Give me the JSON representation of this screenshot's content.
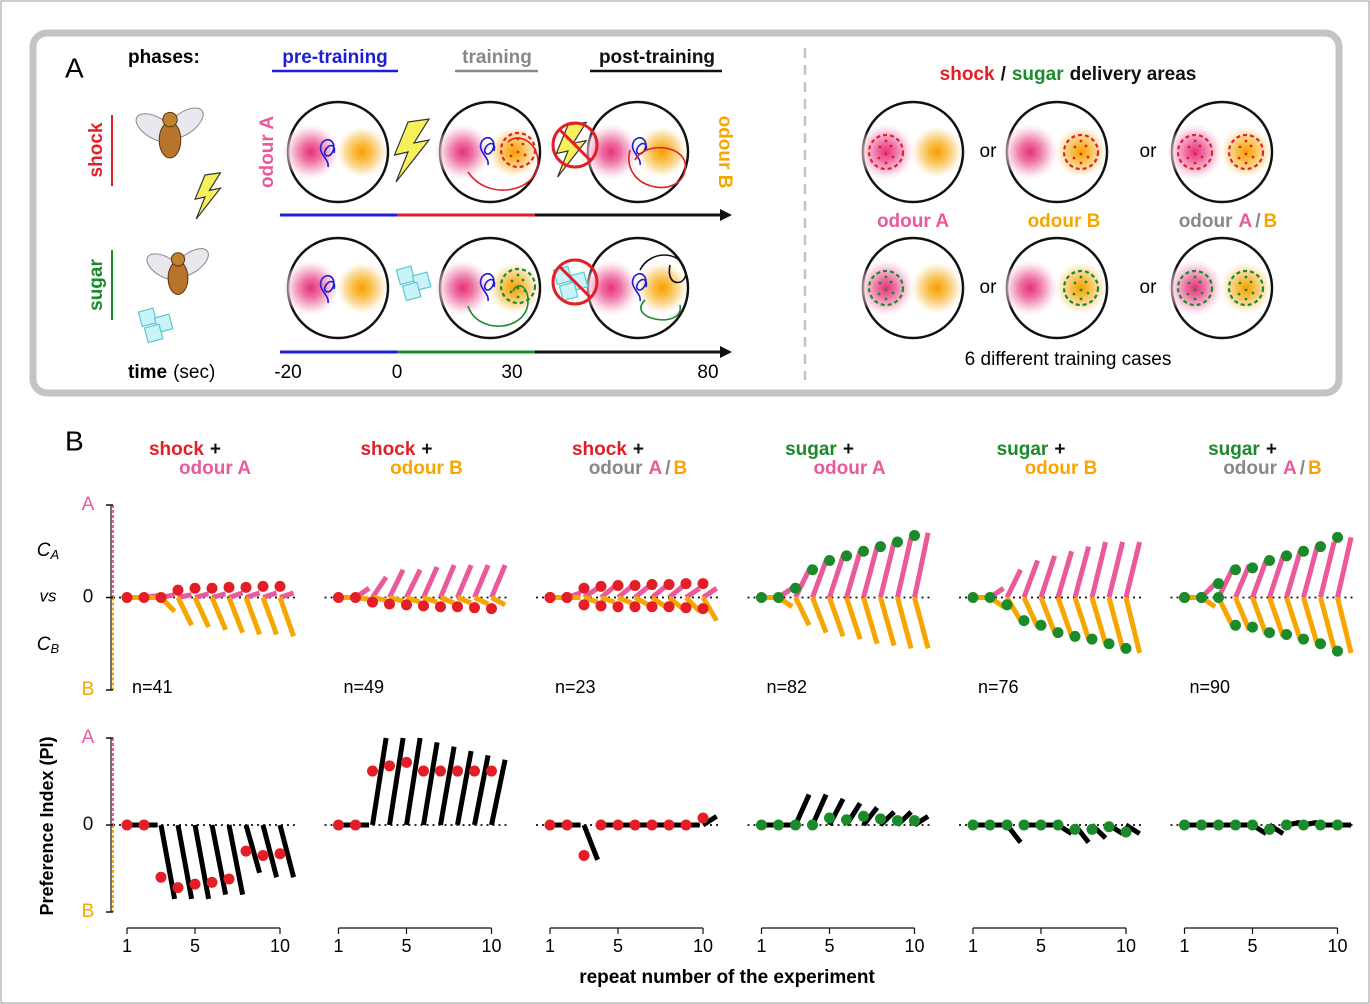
{
  "panel_a": {
    "label": "A",
    "phases_label": "phases:",
    "phases": [
      "pre-training",
      "training",
      "post-training"
    ],
    "stimuli": [
      "shock",
      "sugar"
    ],
    "odour_a": "odour A",
    "odour_b": "odour B",
    "time_label": "time",
    "time_unit": "(sec)",
    "time_ticks": [
      -20,
      0,
      30,
      80
    ],
    "delivery_title": [
      "shock",
      "/",
      "sugar",
      "delivery areas"
    ],
    "case_labels": [
      "odour A",
      "odour B"
    ],
    "case_mixed": [
      "odour",
      "A",
      "/",
      "B"
    ],
    "or": "or",
    "footer": "6 different training cases"
  },
  "panel_b": {
    "label": "B",
    "compare_label": [
      "C",
      "A",
      "vs",
      "C",
      "B"
    ],
    "pi_label": "Preference Index (PI)",
    "x_label": "repeat number of the experiment"
  },
  "chart_data": [
    {
      "type": "line",
      "title": [
        "shock",
        "+",
        "odour A"
      ],
      "title_colors": [
        "#e41e26",
        "#111",
        "#ea5a9a"
      ],
      "n": "n=41",
      "x": [
        1,
        2,
        3,
        4,
        5,
        6,
        7,
        8,
        9,
        10
      ],
      "xlim": [
        0,
        11
      ],
      "ylim": [
        -1,
        1
      ],
      "yticks": [
        {
          "value": 1,
          "label": "A"
        },
        0,
        {
          "value": -1,
          "label": "B"
        }
      ],
      "a_values": [
        0,
        0.02,
        0.03,
        0.03,
        0.04,
        0.04,
        0.05,
        0.05,
        0.05,
        0.05
      ],
      "a_color": "#ea5a9a",
      "b_values": [
        0,
        0,
        -0.15,
        -0.3,
        -0.32,
        -0.35,
        -0.38,
        -0.4,
        -0.4,
        -0.42
      ],
      "b_color": "#f7a600",
      "dots": [
        [
          0,
          0,
          0,
          0.08,
          0.1,
          0.1,
          0.11,
          0.11,
          0.12,
          0.12
        ]
      ],
      "dot_color": "#e41e26"
    },
    {
      "type": "line",
      "title": [
        "shock",
        "+",
        "odour B"
      ],
      "title_colors": [
        "#e41e26",
        "#111",
        "#f7a600"
      ],
      "n": "n=49",
      "x": [
        1,
        2,
        3,
        4,
        5,
        6,
        7,
        8,
        9,
        10
      ],
      "xlim": [
        0,
        11
      ],
      "ylim": [
        -1,
        1
      ],
      "a_values": [
        0,
        0.1,
        0.22,
        0.3,
        0.3,
        0.33,
        0.35,
        0.35,
        0.35,
        0.35
      ],
      "a_color": "#ea5a9a",
      "b_values": [
        0,
        -0.02,
        -0.03,
        -0.04,
        -0.05,
        -0.05,
        -0.06,
        -0.06,
        -0.07,
        -0.08
      ],
      "b_color": "#f7a600",
      "dots": [
        [
          0,
          0,
          -0.05,
          -0.07,
          -0.08,
          -0.09,
          -0.1,
          -0.1,
          -0.11,
          -0.12
        ]
      ],
      "dot_color": "#e41e26"
    },
    {
      "type": "line",
      "title": [
        "shock",
        "+",
        "odour",
        "A",
        "/",
        "B"
      ],
      "title_colors": [
        "#e41e26",
        "#111",
        "#888",
        "#ea5a9a",
        "#888",
        "#f7a600"
      ],
      "n": "n=23",
      "x": [
        1,
        2,
        3,
        4,
        5,
        6,
        7,
        8,
        9,
        10
      ],
      "xlim": [
        0,
        11
      ],
      "ylim": [
        -1,
        1
      ],
      "a_values": [
        0,
        0.05,
        0.1,
        0.12,
        0.12,
        0.12,
        0.12,
        0.12,
        0.1,
        0.1
      ],
      "a_color": "#ea5a9a",
      "b_values": [
        0,
        0,
        -0.05,
        -0.05,
        -0.06,
        -0.08,
        -0.1,
        -0.12,
        -0.15,
        -0.25
      ],
      "b_color": "#f7a600",
      "dots": [
        [
          0,
          0,
          0.1,
          0.12,
          0.13,
          0.13,
          0.14,
          0.14,
          0.15,
          0.15
        ],
        [
          0,
          0,
          -0.08,
          -0.09,
          -0.1,
          -0.1,
          -0.1,
          -0.1,
          -0.11,
          -0.12
        ]
      ],
      "dot_color": "#e41e26"
    },
    {
      "type": "line",
      "title": [
        "sugar",
        "+",
        "odour A"
      ],
      "title_colors": [
        "#1b8a2a",
        "#111",
        "#ea5a9a"
      ],
      "n": "n=82",
      "x": [
        1,
        2,
        3,
        4,
        5,
        6,
        7,
        8,
        9,
        10
      ],
      "xlim": [
        0,
        11
      ],
      "ylim": [
        -1,
        1
      ],
      "a_values": [
        0,
        0.1,
        0.3,
        0.4,
        0.45,
        0.5,
        0.55,
        0.6,
        0.65,
        0.7
      ],
      "a_color": "#ea5a9a",
      "b_values": [
        0,
        -0.1,
        -0.3,
        -0.38,
        -0.42,
        -0.45,
        -0.5,
        -0.52,
        -0.55,
        -0.55
      ],
      "b_color": "#f7a600",
      "dots": [
        [
          0,
          0,
          0.1,
          0.3,
          0.4,
          0.45,
          0.5,
          0.55,
          0.6,
          0.67
        ]
      ],
      "dot_color": "#1b8a2a"
    },
    {
      "type": "line",
      "title": [
        "sugar",
        "+",
        "odour B"
      ],
      "title_colors": [
        "#1b8a2a",
        "#111",
        "#f7a600"
      ],
      "n": "n=76",
      "x": [
        1,
        2,
        3,
        4,
        5,
        6,
        7,
        8,
        9,
        10
      ],
      "xlim": [
        0,
        11
      ],
      "ylim": [
        -1,
        1
      ],
      "a_values": [
        0,
        0.1,
        0.3,
        0.4,
        0.45,
        0.5,
        0.55,
        0.6,
        0.6,
        0.6
      ],
      "a_color": "#ea5a9a",
      "b_values": [
        0,
        -0.1,
        -0.25,
        -0.32,
        -0.38,
        -0.42,
        -0.45,
        -0.5,
        -0.55,
        -0.6
      ],
      "b_color": "#f7a600",
      "dots": [
        [
          0,
          0,
          -0.08,
          -0.25,
          -0.3,
          -0.38,
          -0.42,
          -0.45,
          -0.5,
          -0.55
        ]
      ],
      "dot_color": "#1b8a2a"
    },
    {
      "type": "line",
      "title": [
        "sugar",
        "+",
        "odour",
        "A",
        "/",
        "B"
      ],
      "title_colors": [
        "#1b8a2a",
        "#111",
        "#888",
        "#ea5a9a",
        "#888",
        "#f7a600"
      ],
      "n": "n=90",
      "x": [
        1,
        2,
        3,
        4,
        5,
        6,
        7,
        8,
        9,
        10
      ],
      "xlim": [
        0,
        11
      ],
      "ylim": [
        -1,
        1
      ],
      "a_values": [
        0,
        0.15,
        0.3,
        0.35,
        0.4,
        0.45,
        0.5,
        0.55,
        0.6,
        0.65
      ],
      "a_color": "#ea5a9a",
      "b_values": [
        0,
        -0.1,
        -0.3,
        -0.35,
        -0.4,
        -0.42,
        -0.45,
        -0.5,
        -0.55,
        -0.6
      ],
      "b_color": "#f7a600",
      "dots": [
        [
          0,
          0,
          0.15,
          0.3,
          0.32,
          0.4,
          0.45,
          0.5,
          0.55,
          0.65
        ],
        [
          0,
          0,
          0,
          -0.3,
          -0.32,
          -0.38,
          -0.4,
          -0.45,
          -0.5,
          -0.58
        ]
      ],
      "dot_color": "#1b8a2a"
    },
    {
      "type": "line",
      "x": [
        1,
        2,
        3,
        4,
        5,
        6,
        7,
        8,
        9,
        10
      ],
      "xlim": [
        0,
        11
      ],
      "ylim": [
        -1,
        1
      ],
      "xticks": [
        1,
        5,
        10
      ],
      "yticks": [
        {
          "value": 1,
          "label": "A"
        },
        0,
        {
          "value": -1,
          "label": "B"
        }
      ],
      "pi_values": [
        0,
        0,
        -0.85,
        -0.85,
        -0.85,
        -0.8,
        -0.8,
        -0.55,
        -0.6,
        -0.6
      ],
      "pi_color": "#000",
      "dots": [
        [
          0,
          0,
          -0.6,
          -0.72,
          -0.68,
          -0.66,
          -0.62,
          -0.3,
          -0.35,
          -0.33
        ]
      ],
      "dot_color": "#e41e26"
    },
    {
      "type": "line",
      "x": [
        1,
        2,
        3,
        4,
        5,
        6,
        7,
        8,
        9,
        10
      ],
      "xlim": [
        0,
        11
      ],
      "ylim": [
        -1,
        1
      ],
      "xticks": [
        1,
        5,
        10
      ],
      "pi_values": [
        0,
        0,
        1,
        1,
        1,
        0.95,
        0.9,
        0.85,
        0.8,
        0.75
      ],
      "pi_color": "#000",
      "dots": [
        [
          0,
          0,
          0.62,
          0.68,
          0.72,
          0.62,
          0.62,
          0.62,
          0.62,
          0.62
        ]
      ],
      "dot_color": "#e41e26"
    },
    {
      "type": "line",
      "x": [
        1,
        2,
        3,
        4,
        5,
        6,
        7,
        8,
        9,
        10
      ],
      "xlim": [
        0,
        11
      ],
      "ylim": [
        -1,
        1
      ],
      "xticks": [
        1,
        5,
        10
      ],
      "pi_values": [
        0,
        0,
        -0.4,
        0,
        0,
        0,
        0,
        0,
        0,
        0.1
      ],
      "pi_color": "#000",
      "dots": [
        [
          0,
          0,
          -0.35,
          0,
          0,
          0,
          0,
          0,
          0,
          0.08
        ]
      ],
      "dot_color": "#e41e26"
    },
    {
      "type": "line",
      "x": [
        1,
        2,
        3,
        4,
        5,
        6,
        7,
        8,
        9,
        10
      ],
      "xlim": [
        0,
        11
      ],
      "ylim": [
        -1,
        1
      ],
      "xticks": [
        1,
        5,
        10
      ],
      "pi_values": [
        0,
        0,
        0.35,
        0.35,
        0.3,
        0.25,
        0.2,
        0.15,
        0.15,
        0.1
      ],
      "pi_color": "#000",
      "dots": [
        [
          0,
          0,
          0,
          0,
          0.08,
          0.06,
          0.1,
          0.07,
          0.05,
          0.05
        ]
      ],
      "dot_color": "#1b8a2a"
    },
    {
      "type": "line",
      "x": [
        1,
        2,
        3,
        4,
        5,
        6,
        7,
        8,
        9,
        10
      ],
      "xlim": [
        0,
        11
      ],
      "ylim": [
        -1,
        1
      ],
      "xticks": [
        1,
        5,
        10
      ],
      "pi_values": [
        0,
        0,
        -0.2,
        0,
        0,
        -0.1,
        -0.2,
        -0.15,
        -0.1,
        -0.1
      ],
      "pi_color": "#000",
      "dots": [
        [
          0,
          0,
          0,
          0,
          0,
          0,
          -0.05,
          -0.05,
          -0.02,
          -0.08
        ]
      ],
      "dot_color": "#1b8a2a"
    },
    {
      "type": "line",
      "x": [
        1,
        2,
        3,
        4,
        5,
        6,
        7,
        8,
        9,
        10
      ],
      "xlim": [
        0,
        11
      ],
      "ylim": [
        -1,
        1
      ],
      "xticks": [
        1,
        5,
        10
      ],
      "pi_values": [
        0,
        0,
        0,
        0,
        -0.1,
        -0.1,
        0.03,
        0.03,
        0,
        0
      ],
      "pi_color": "#000",
      "dots": [
        [
          0,
          0,
          0,
          0,
          0,
          -0.05,
          0,
          0,
          0,
          0
        ]
      ],
      "dot_color": "#1b8a2a"
    }
  ]
}
